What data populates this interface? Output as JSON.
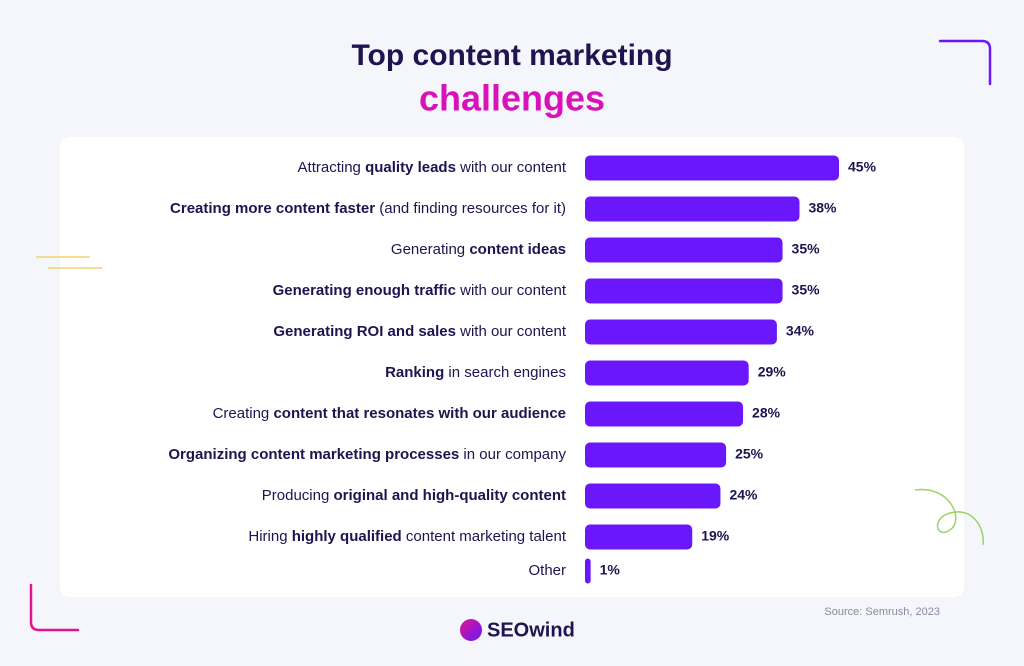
{
  "chart_data": {
    "type": "bar",
    "orientation": "horizontal",
    "title": [
      "Top content marketing",
      "challenges"
    ],
    "categories": [
      [
        {
          "text": "Attracting ",
          "bold": false
        },
        {
          "text": "quality leads",
          "bold": true
        },
        {
          "text": " with our content",
          "bold": false
        }
      ],
      [
        {
          "text": "Creating more content faster",
          "bold": true
        },
        {
          "text": " (and finding resources for it)",
          "bold": false
        }
      ],
      [
        {
          "text": "Generating ",
          "bold": false
        },
        {
          "text": "content ideas",
          "bold": true
        }
      ],
      [
        {
          "text": "Generating enough traffic",
          "bold": true
        },
        {
          "text": " with our content",
          "bold": false
        }
      ],
      [
        {
          "text": "Generating ROI and sales",
          "bold": true
        },
        {
          "text": " with our content",
          "bold": false
        }
      ],
      [
        {
          "text": "Ranking",
          "bold": true
        },
        {
          "text": " in search engines",
          "bold": false
        }
      ],
      [
        {
          "text": "Creating ",
          "bold": false
        },
        {
          "text": "content that resonates with our audience",
          "bold": true
        }
      ],
      [
        {
          "text": "Organizing content marketing processes",
          "bold": true
        },
        {
          "text": " in our company",
          "bold": false
        }
      ],
      [
        {
          "text": "Producing ",
          "bold": false
        },
        {
          "text": "original and high-quality content",
          "bold": true
        }
      ],
      [
        {
          "text": "Hiring ",
          "bold": false
        },
        {
          "text": "highly qualified",
          "bold": true
        },
        {
          "text": " content marketing talent",
          "bold": false
        }
      ],
      [
        {
          "text": "Other",
          "bold": false
        }
      ]
    ],
    "values": [
      45,
      38,
      35,
      35,
      34,
      29,
      28,
      25,
      24,
      19,
      1
    ],
    "value_labels": [
      "45%",
      "38%",
      "35%",
      "35%",
      "34%",
      "29%",
      "28%",
      "25%",
      "24%",
      "19%",
      "1%"
    ],
    "color": "#6b17fb",
    "source": "Source: Semrush, 2023",
    "brand": "SEOwind"
  }
}
